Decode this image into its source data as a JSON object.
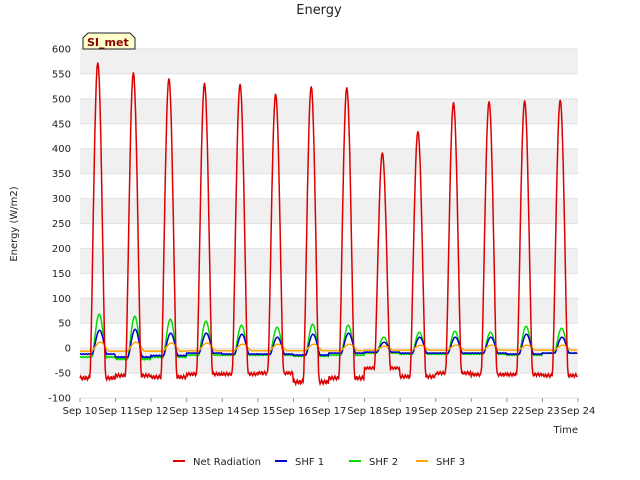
{
  "chart_data": {
    "type": "line",
    "title": "Energy",
    "xlabel": "Time",
    "ylabel": "Energy (W/m2)",
    "site_label": "SI_met",
    "ylim": [
      -100,
      600
    ],
    "yticks": [
      -100,
      -50,
      0,
      50,
      100,
      150,
      200,
      250,
      300,
      350,
      400,
      450,
      500,
      550,
      600
    ],
    "xlim_days": [
      10,
      24
    ],
    "xticks": [
      {
        "day": 10,
        "label": "Sep 10"
      },
      {
        "day": 11,
        "label": "Sep 11"
      },
      {
        "day": 12,
        "label": "Sep 12"
      },
      {
        "day": 13,
        "label": "Sep 13"
      },
      {
        "day": 14,
        "label": "Sep 14"
      },
      {
        "day": 15,
        "label": "Sep 15"
      },
      {
        "day": 16,
        "label": "Sep 16"
      },
      {
        "day": 17,
        "label": "Sep 17"
      },
      {
        "day": 18,
        "label": "Sep 18"
      },
      {
        "day": 19,
        "label": "Sep 19"
      },
      {
        "day": 20,
        "label": "Sep 20"
      },
      {
        "day": 21,
        "label": "Sep 21"
      },
      {
        "day": 22,
        "label": "Sep 22"
      },
      {
        "day": 23,
        "label": "Sep 23"
      },
      {
        "day": 24,
        "label": "Sep 24"
      }
    ],
    "series": [
      {
        "name": "Net Radiation",
        "color": "#dd0000",
        "daily_peak": [
          573,
          553,
          541,
          532,
          530,
          510,
          525,
          523,
          392,
          435,
          493,
          495,
          497,
          498
        ],
        "night_base": [
          -60,
          -55,
          -58,
          -52,
          -52,
          -50,
          -68,
          -60,
          -40,
          -57,
          -50,
          -53,
          -53,
          -55
        ]
      },
      {
        "name": "SHF 1",
        "color": "#0000cc",
        "daily_peak": [
          36,
          38,
          30,
          30,
          28,
          22,
          28,
          30,
          12,
          22,
          22,
          22,
          28,
          22
        ],
        "night_base": [
          -12,
          -18,
          -15,
          -10,
          -12,
          -12,
          -14,
          -10,
          -8,
          -10,
          -10,
          -10,
          -12,
          -10
        ]
      },
      {
        "name": "SHF 2",
        "color": "#00dd00",
        "daily_peak": [
          68,
          64,
          58,
          54,
          46,
          42,
          48,
          46,
          22,
          32,
          34,
          32,
          44,
          40
        ],
        "night_base": [
          -18,
          -22,
          -18,
          -14,
          -14,
          -14,
          -16,
          -14,
          -10,
          -12,
          -12,
          -12,
          -14,
          -10
        ]
      },
      {
        "name": "SHF 3",
        "color": "#ffa500",
        "daily_peak": [
          12,
          12,
          10,
          10,
          8,
          8,
          8,
          8,
          4,
          6,
          6,
          6,
          6,
          6
        ],
        "night_base": [
          -6,
          -6,
          -6,
          -5,
          -5,
          -5,
          -5,
          -5,
          -4,
          -4,
          -4,
          -4,
          -4,
          -4
        ]
      }
    ],
    "legend_position": "bottom-center",
    "grid": true
  }
}
